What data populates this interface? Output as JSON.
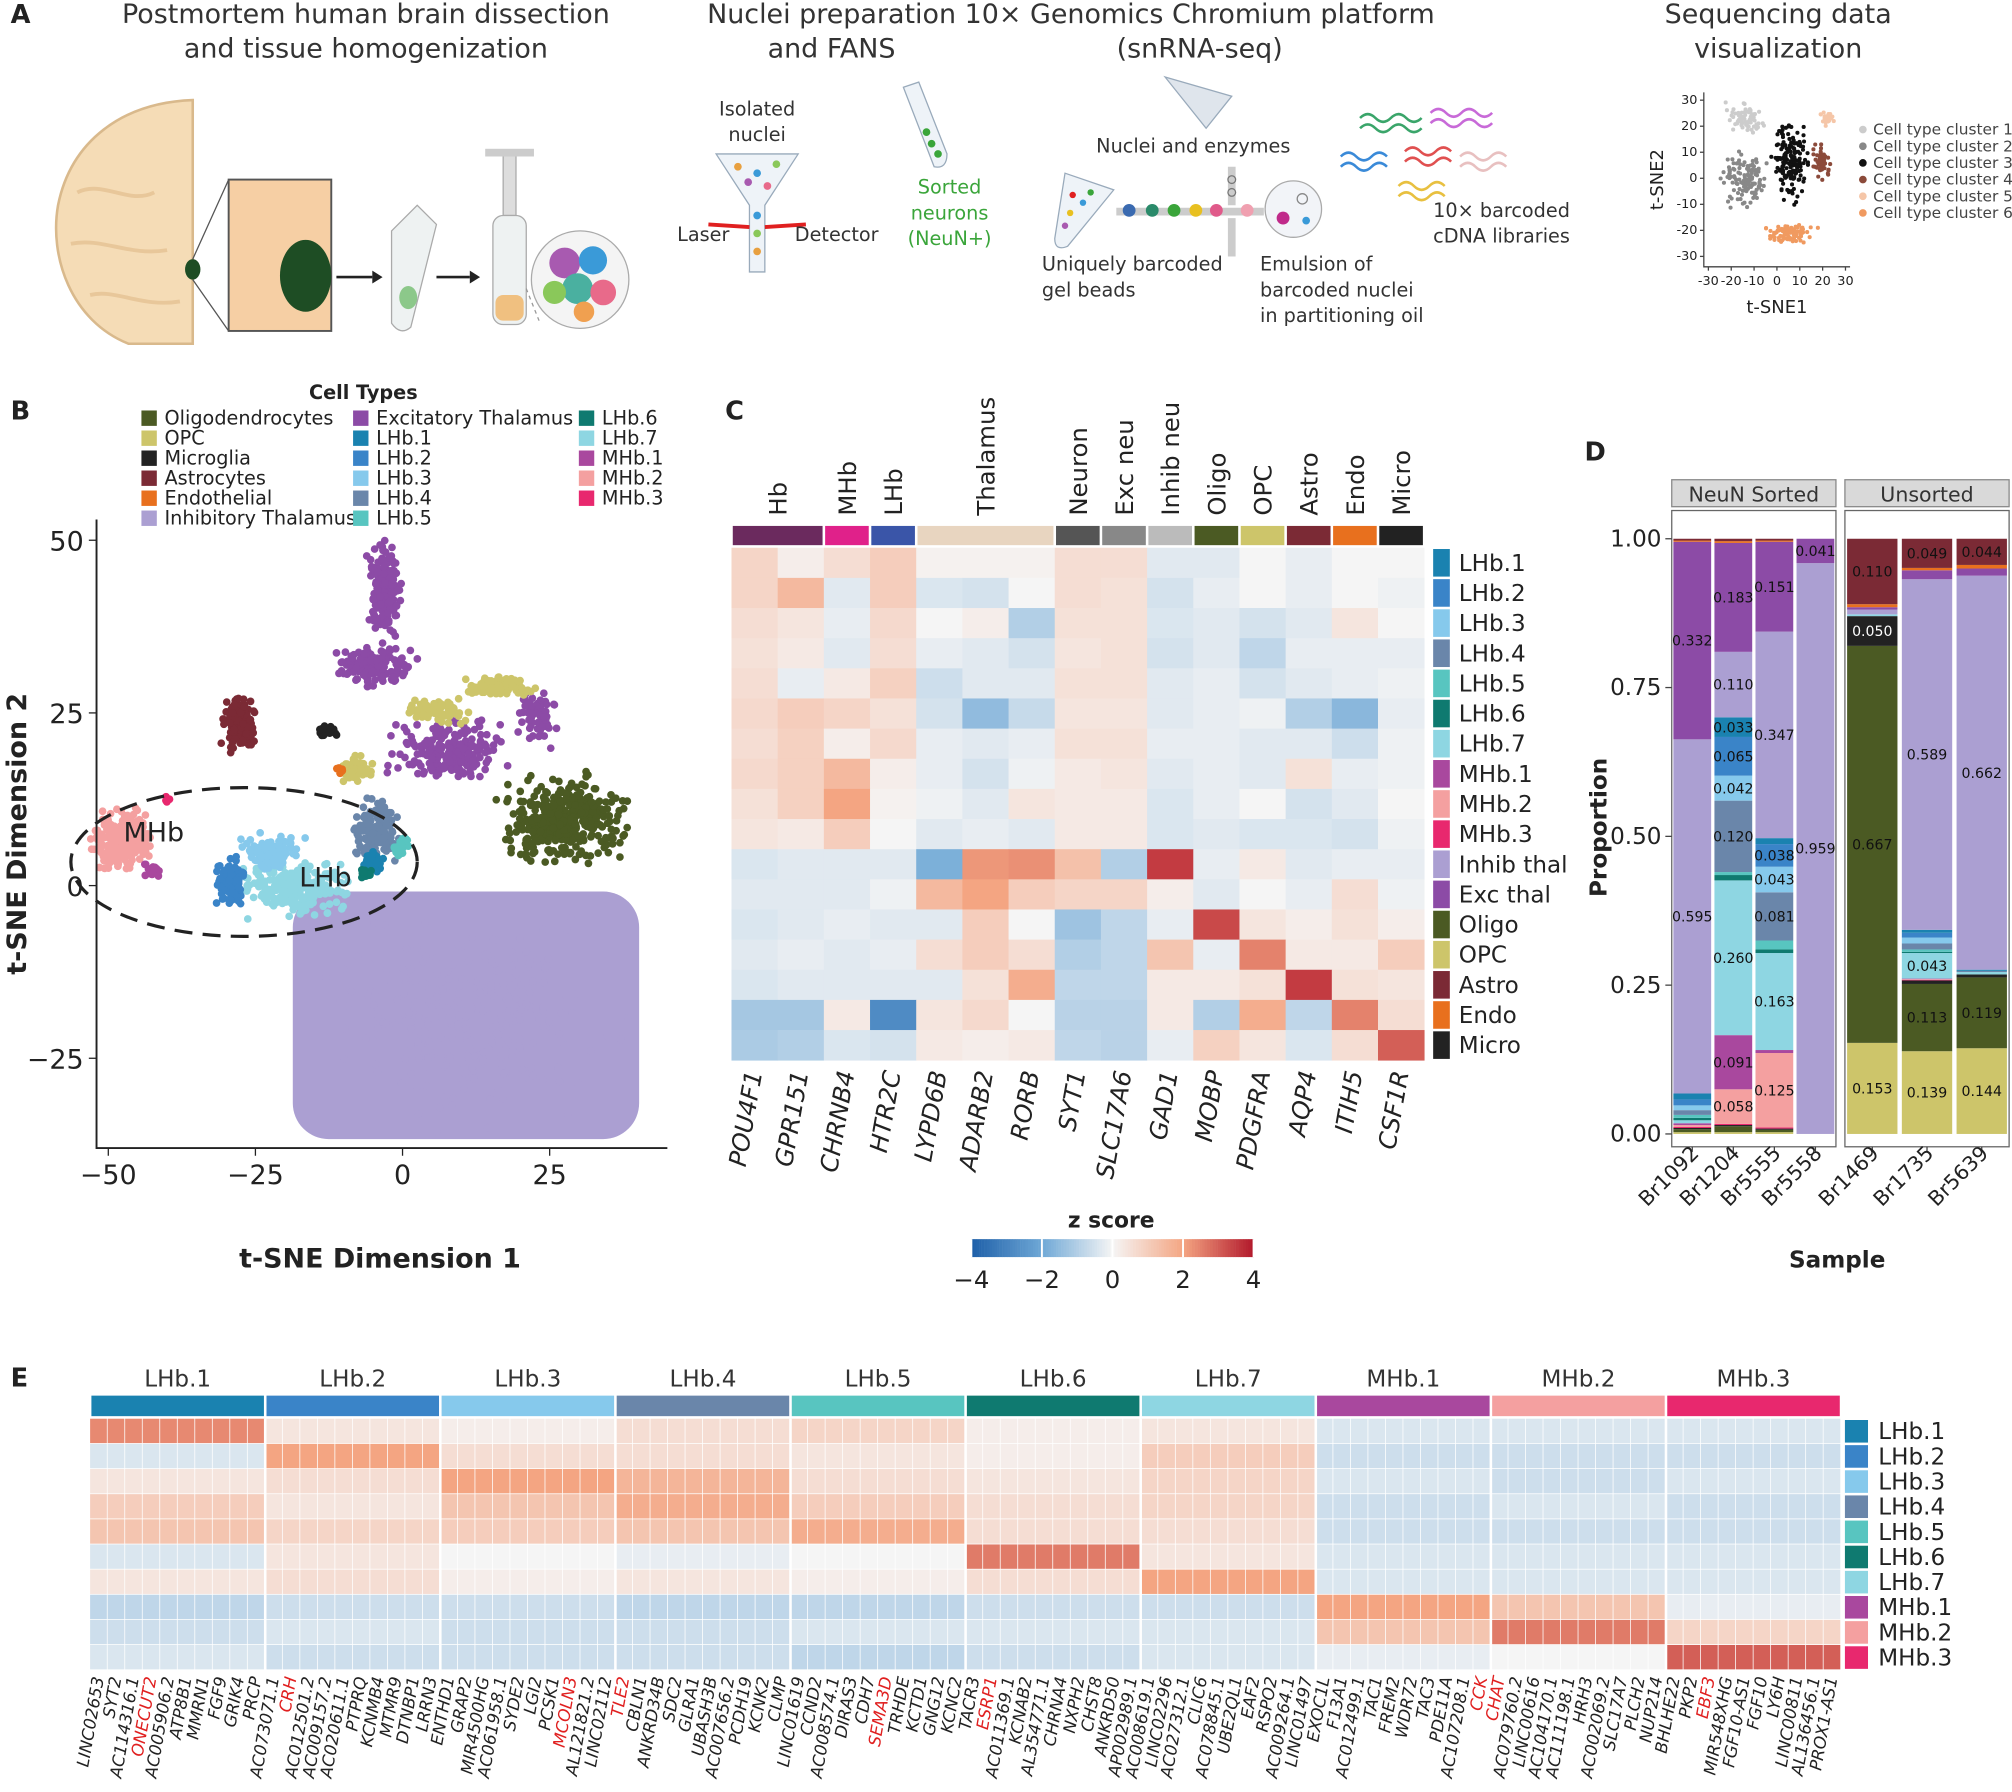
{
  "panel_a": {
    "label": "A",
    "headings": [
      [
        "Postmortem human brain dissection",
        "and tissue homogenization"
      ],
      [
        "Nuclei preparation",
        "and FANS"
      ],
      [
        "10× Genomics Chromium platform",
        "(snRNA-seq)"
      ],
      [
        "Sequencing data",
        "visualization"
      ]
    ],
    "isolated_nuclei": [
      "Isolated",
      "nuclei"
    ],
    "laser": "Laser",
    "detector": "Detector",
    "sorted_neurons": [
      "Sorted",
      "neurons",
      "(NeuN+)"
    ],
    "sorted_color": "#3aa53a",
    "nuclei_enzymes": "Nuclei and enzymes",
    "gel_beads": [
      "Uniquely barcoded",
      "gel beads"
    ],
    "emulsion": [
      "Emulsion of",
      "barcoded nuclei",
      "in partitioning oil"
    ],
    "libraries": [
      "10× barcoded",
      "cDNA libraries"
    ],
    "mini_tsne": {
      "xlabel": "t-SNE1",
      "ylabel": "t-SNE2",
      "xlim": [
        -32,
        32
      ],
      "ylim": [
        -34,
        33
      ],
      "xticks": [
        -30,
        -20,
        -10,
        0,
        10,
        20,
        30
      ],
      "yticks": [
        30,
        20,
        10,
        0,
        -10,
        -20,
        -30
      ],
      "legend": [
        {
          "name": "Cell type cluster 1",
          "color": "#cccccc"
        },
        {
          "name": "Cell type cluster 2",
          "color": "#888888"
        },
        {
          "name": "Cell type cluster 3",
          "color": "#111111"
        },
        {
          "name": "Cell type cluster 4",
          "color": "#8b4a3a"
        },
        {
          "name": "Cell type cluster 5",
          "color": "#f5c6a8"
        },
        {
          "name": "Cell type cluster 6",
          "color": "#f09a60"
        }
      ]
    }
  },
  "panel_b": {
    "label": "B",
    "legend_title": "Cell Types",
    "legend": [
      {
        "name": "Oligodendrocytes",
        "color": "#4b5a23"
      },
      {
        "name": "OPC",
        "color": "#cdc56a"
      },
      {
        "name": "Microglia",
        "color": "#222222"
      },
      {
        "name": "Astrocytes",
        "color": "#7b2a35"
      },
      {
        "name": "Endothelial",
        "color": "#e8701e"
      },
      {
        "name": "Inhibitory Thalamus",
        "color": "#ab9fd2"
      },
      {
        "name": "Excitatory Thalamus",
        "color": "#8c4ba6"
      },
      {
        "name": "LHb.1",
        "color": "#1a82b0"
      },
      {
        "name": "LHb.2",
        "color": "#3a84c8"
      },
      {
        "name": "LHb.3",
        "color": "#86c9ec"
      },
      {
        "name": "LHb.4",
        "color": "#6a86aa"
      },
      {
        "name": "LHb.5",
        "color": "#58c5c0"
      },
      {
        "name": "LHb.6",
        "color": "#0f7a70"
      },
      {
        "name": "LHb.7",
        "color": "#8ed6e2"
      },
      {
        "name": "MHb.1",
        "color": "#a9489e"
      },
      {
        "name": "MHb.2",
        "color": "#f4a0a0"
      },
      {
        "name": "MHb.3",
        "color": "#e8286e"
      }
    ],
    "xlabel": "t-SNE Dimension 1",
    "ylabel": "t-SNE Dimension 2",
    "xlim": [
      -52,
      45
    ],
    "ylim": [
      -38,
      53
    ],
    "xticks": [
      {
        "value": -50,
        "label": "−50"
      },
      {
        "value": -25,
        "label": "−25"
      },
      0,
      25
    ],
    "yticks": [
      50,
      25,
      0,
      {
        "value": -25,
        "label": "−25"
      }
    ],
    "annotations": [
      "MHb",
      "LHb"
    ]
  },
  "panel_c": {
    "label": "C",
    "groups": [
      {
        "name": "Hb",
        "color": "#6b2a5e",
        "span": 2
      },
      {
        "name": "MHb",
        "color": "#e0218a",
        "span": 1
      },
      {
        "name": "LHb",
        "color": "#3a55a8",
        "span": 1
      },
      {
        "name": "Thalamus",
        "color": "#e8d5c0",
        "span": 3
      },
      {
        "name": "Neuron",
        "color": "#555555",
        "span": 1
      },
      {
        "name": "Exc neu",
        "color": "#888888",
        "span": 1
      },
      {
        "name": "Inhib neu",
        "color": "#bbbbbb",
        "span": 1
      },
      {
        "name": "Oligo",
        "color": "#4b5a23",
        "span": 1
      },
      {
        "name": "OPC",
        "color": "#cdc56a",
        "span": 1
      },
      {
        "name": "Astro",
        "color": "#7b2a35",
        "span": 1
      },
      {
        "name": "Endo",
        "color": "#e8701e",
        "span": 1
      },
      {
        "name": "Micro",
        "color": "#222222",
        "span": 1
      }
    ],
    "genes": [
      "POU4F1",
      "GPR151",
      "CHRNB4",
      "HTR2C",
      "LYPD6B",
      "ADARB2",
      "RORB",
      "SYT1",
      "SLC17A6",
      "GAD1",
      "MOBP",
      "PDGFRA",
      "AQP4",
      "ITIH5",
      "CSF1R"
    ],
    "rows": [
      {
        "name": "LHb.1",
        "color": "#1a82b0"
      },
      {
        "name": "LHb.2",
        "color": "#3a84c8"
      },
      {
        "name": "LHb.3",
        "color": "#86c9ec"
      },
      {
        "name": "LHb.4",
        "color": "#6a86aa"
      },
      {
        "name": "LHb.5",
        "color": "#58c5c0"
      },
      {
        "name": "LHb.6",
        "color": "#0f7a70"
      },
      {
        "name": "LHb.7",
        "color": "#8ed6e2"
      },
      {
        "name": "MHb.1",
        "color": "#a9489e"
      },
      {
        "name": "MHb.2",
        "color": "#f4a0a0"
      },
      {
        "name": "MHb.3",
        "color": "#e8286e"
      },
      {
        "name": "Inhib thal",
        "color": "#ab9fd2"
      },
      {
        "name": "Exc thal",
        "color": "#8c4ba6"
      },
      {
        "name": "Oligo",
        "color": "#4b5a23"
      },
      {
        "name": "OPC",
        "color": "#cdc56a"
      },
      {
        "name": "Astro",
        "color": "#7b2a35"
      },
      {
        "name": "Endo",
        "color": "#e8701e"
      },
      {
        "name": "Micro",
        "color": "#222222"
      }
    ],
    "z": [
      [
        0.8,
        0.2,
        0.6,
        1,
        0.1,
        0.1,
        0.1,
        0.6,
        0.6,
        -0.3,
        -0.3,
        0,
        -0.2,
        0,
        0
      ],
      [
        0.8,
        1.5,
        -0.3,
        1,
        -0.4,
        -0.5,
        0,
        0.6,
        0.5,
        -0.5,
        -0.2,
        0,
        -0.2,
        0,
        -0.1
      ],
      [
        0.6,
        0.4,
        -0.2,
        0.7,
        0,
        0.2,
        -1,
        0.5,
        0.5,
        -0.4,
        -0.3,
        -0.5,
        -0.3,
        0.4,
        0
      ],
      [
        0.5,
        0.3,
        -0.3,
        0.6,
        -0.2,
        -0.3,
        -0.5,
        0.4,
        0.5,
        -0.5,
        -0.3,
        -0.8,
        -0.2,
        -0.2,
        -0.2
      ],
      [
        0.6,
        -0.2,
        0.3,
        0.9,
        -0.6,
        -0.3,
        -0.3,
        0.5,
        0.5,
        -0.3,
        -0.2,
        -0.5,
        -0.3,
        -0.2,
        -0.1
      ],
      [
        0.7,
        1,
        0.8,
        0.5,
        -0.5,
        -1.5,
        -0.7,
        0.4,
        0.4,
        -0.3,
        -0.2,
        -0.1,
        -1,
        -1.6,
        -0.2
      ],
      [
        0.6,
        0.9,
        0.2,
        0.7,
        -0.2,
        -0.3,
        -0.2,
        0.5,
        0.5,
        -0.2,
        -0.2,
        -0.3,
        -0.3,
        -0.6,
        -0.1
      ],
      [
        0.7,
        0.9,
        1.5,
        0.2,
        -0.2,
        -0.5,
        -0.1,
        0.3,
        0.4,
        -0.3,
        -0.2,
        -0.3,
        0.5,
        -0.2,
        -0.1
      ],
      [
        0.5,
        0.9,
        2,
        0.1,
        -0.1,
        -0.3,
        0.4,
        0.3,
        0.3,
        -0.4,
        -0.2,
        0,
        -0.5,
        -0.3,
        0
      ],
      [
        0.4,
        0.3,
        1,
        0,
        -0.3,
        -0.2,
        -0.3,
        0.3,
        0.3,
        -0.4,
        -0.3,
        -0.4,
        -0.4,
        -0.5,
        -0.1
      ],
      [
        -0.4,
        -0.3,
        -0.3,
        -0.3,
        -1.8,
        2.2,
        2.3,
        1.3,
        -1,
        3.5,
        -0.2,
        0.3,
        -0.3,
        -0.2,
        -0.2
      ],
      [
        -0.3,
        -0.3,
        -0.3,
        -0.1,
        1.5,
        2,
        1,
        0.8,
        0.8,
        0.2,
        -0.3,
        0,
        -0.2,
        0.6,
        -0.1
      ],
      [
        -0.4,
        -0.3,
        -0.2,
        -0.3,
        -0.3,
        1,
        0,
        -1.3,
        -0.8,
        -0.2,
        3.3,
        0.4,
        0.2,
        0.5,
        0.2
      ],
      [
        -0.3,
        -0.2,
        -0.3,
        -0.2,
        0.6,
        1,
        0.6,
        -1,
        -0.8,
        1.2,
        -0.2,
        2.5,
        0.3,
        0.3,
        1
      ],
      [
        -0.4,
        -0.3,
        -0.3,
        -0.3,
        -0.3,
        0.5,
        1.8,
        -0.8,
        -0.8,
        0.3,
        0.3,
        0.5,
        3.5,
        0.5,
        0.4
      ],
      [
        -1.2,
        -1.2,
        0.3,
        -2.8,
        0.4,
        0.7,
        0,
        -0.9,
        -0.9,
        0.3,
        -1,
        1.8,
        -0.8,
        2.5,
        0.6
      ],
      [
        -1.1,
        -1,
        -0.4,
        -0.5,
        0.3,
        0.2,
        0.3,
        -0.8,
        -0.9,
        -0.2,
        0.9,
        0.4,
        -0.4,
        0.6,
        3
      ]
    ],
    "colormap": [
      "#1e5fa8",
      "#6fa8d6",
      "#f5f5f5",
      "#f4a582",
      "#b2182b"
    ],
    "colorbar": {
      "title": "z score",
      "lim": [
        -4,
        4
      ],
      "ticks": [
        {
          "value": -4,
          "label": "−4"
        },
        {
          "value": -2,
          "label": "−2"
        },
        0,
        2,
        4
      ]
    }
  },
  "panel_d": {
    "label": "D",
    "facets": [
      {
        "name": "NeuN Sorted",
        "span": 4
      },
      {
        "name": "Unsorted",
        "span": 3
      }
    ],
    "samples": [
      "Br1092",
      "Br1204",
      "Br5555",
      "Br5558",
      "Br1469",
      "Br1735",
      "Br5639"
    ],
    "ylabel": "Proportion",
    "xlabel": "Sample",
    "ylim": [
      0,
      1
    ],
    "yticks": [
      {
        "value": 0,
        "label": "0.00"
      },
      {
        "value": 0.25,
        "label": "0.25"
      },
      {
        "value": 0.5,
        "label": "0.50"
      },
      {
        "value": 0.75,
        "label": "0.75"
      },
      {
        "value": 1,
        "label": "1.00"
      }
    ],
    "values": [
      [
        0.005,
        0.003,
        0.002,
        0.003,
        0.002,
        0.595,
        0.332,
        0.01,
        0.01,
        0.008,
        0.008,
        0.005,
        0.004,
        0.005,
        0.003,
        0.003,
        0.002
      ],
      [
        0.01,
        0.003,
        0.002,
        0.004,
        0.003,
        0.11,
        0.183,
        0.033,
        0.065,
        0.042,
        0.12,
        0.005,
        0.009,
        0.26,
        0.091,
        0.058,
        0.002
      ],
      [
        0.004,
        0.003,
        0.002,
        0.003,
        0.002,
        0.347,
        0.151,
        0.01,
        0.038,
        0.043,
        0.081,
        0.015,
        0.006,
        0.163,
        0.005,
        0.125,
        0.002
      ],
      [
        0,
        0,
        0,
        0,
        0,
        0.959,
        0.041,
        0,
        0,
        0,
        0,
        0,
        0,
        0,
        0,
        0,
        0
      ],
      [
        0.667,
        0.153,
        0.05,
        0.11,
        0.005,
        0.008,
        0.004,
        0,
        0,
        0,
        0,
        0,
        0,
        0.003,
        0,
        0,
        0
      ],
      [
        0.113,
        0.139,
        0.006,
        0.049,
        0.004,
        0.589,
        0.015,
        0.005,
        0.008,
        0.01,
        0.01,
        0.004,
        0.002,
        0.043,
        0.001,
        0.001,
        0.001
      ],
      [
        0.119,
        0.144,
        0.005,
        0.044,
        0.006,
        0.662,
        0.012,
        0.002,
        0,
        0,
        0.002,
        0,
        0,
        0.004,
        0,
        0,
        0
      ]
    ],
    "value_labels": [
      [
        null,
        null,
        null,
        null,
        null,
        "0.595",
        "0.332",
        null,
        null,
        null,
        null,
        null,
        null,
        null,
        null,
        null,
        null
      ],
      [
        null,
        null,
        null,
        null,
        null,
        "0.110",
        "0.183",
        "0.033",
        "0.065",
        "0.042",
        "0.120",
        null,
        null,
        "0.260",
        "0.091",
        "0.058",
        null
      ],
      [
        null,
        null,
        null,
        null,
        null,
        "0.347",
        "0.151",
        null,
        "0.038",
        "0.043",
        "0.081",
        null,
        null,
        "0.163",
        null,
        "0.125",
        null
      ],
      [
        null,
        null,
        null,
        null,
        null,
        "0.959",
        "0.041",
        null,
        null,
        null,
        null,
        null,
        null,
        null,
        null,
        null,
        null
      ],
      [
        "0.667",
        "0.153",
        "0.050",
        "0.110",
        null,
        null,
        null,
        null,
        null,
        null,
        null,
        null,
        null,
        null,
        null,
        null,
        null
      ],
      [
        "0.113",
        "0.139",
        null,
        "0.049",
        null,
        "0.589",
        null,
        null,
        null,
        null,
        null,
        null,
        null,
        "0.043",
        null,
        null,
        null
      ],
      [
        "0.119",
        "0.144",
        null,
        "0.044",
        null,
        "0.662",
        null,
        null,
        null,
        null,
        null,
        null,
        null,
        null,
        null,
        null,
        null
      ]
    ]
  },
  "panel_e": {
    "label": "E",
    "lim": [
      -2,
      2
    ],
    "highlight_color": "#e02020",
    "clusters": [
      {
        "name": "LHb.1",
        "color": "#1a82b0",
        "highlight": 3,
        "genes": [
          "LINC02653",
          "SYT2",
          "AC114316.1",
          "ONECUT2",
          "AC005906.2",
          "ATP8B1",
          "MMRN1",
          "FGF9",
          "GRIK4",
          "PRCP"
        ]
      },
      {
        "name": "LHb.2",
        "color": "#3a84c8",
        "highlight": 1,
        "genes": [
          "AC073071.1",
          "CRH",
          "AC012501.2",
          "AC009157.2",
          "AC020611.1",
          "PTPRQ",
          "KCNMB4",
          "MTMR9",
          "DTNBP1",
          "LRRN3"
        ]
      },
      {
        "name": "LHb.3",
        "color": "#86c9ec",
        "highlight": 7,
        "genes": [
          "ENTHD1",
          "GRAP2",
          "MIR4500HG",
          "AC061958.1",
          "SYDE2",
          "LGI2",
          "PCSK1",
          "MCOLN3",
          "AL121821.2",
          "LINC02112"
        ]
      },
      {
        "name": "LHb.4",
        "color": "#6a86aa",
        "highlight": 0,
        "genes": [
          "TLE2",
          "CBLN1",
          "ANKRD34B",
          "SDC2",
          "GLRA1",
          "UBASH3B",
          "AC007656.2",
          "PCDH19",
          "KCNK2",
          "CLMP"
        ]
      },
      {
        "name": "LHb.5",
        "color": "#58c5c0",
        "highlight": 5,
        "genes": [
          "LINC01619",
          "CCND2",
          "AC008574.1",
          "DIRAS3",
          "CDH7",
          "SEMA3D",
          "TRHDE",
          "KCTD1",
          "GNG12",
          "KCNC2"
        ]
      },
      {
        "name": "LHb.6",
        "color": "#0f7a70",
        "highlight": 1,
        "genes": [
          "TACR3",
          "ESRP1",
          "AC011369.1",
          "KCNAB2",
          "AL354771.1",
          "CHRNA4",
          "NXPH2",
          "CHST8",
          "ANKRD50",
          "AP002989.1"
        ]
      },
      {
        "name": "LHb.7",
        "color": "#8ed6e2",
        "highlight": null,
        "genes": [
          "AC008619.1",
          "LINC02296",
          "AC027312.1",
          "CLIC6",
          "AC078845.1",
          "UBE2QL1",
          "EAF2",
          "RSPO2",
          "AC009264.1",
          "LINC01497"
        ]
      },
      {
        "name": "MHb.1",
        "color": "#a9489e",
        "highlight": 9,
        "genes": [
          "EXOC1L",
          "F13A1",
          "AC012499.1",
          "TAC1",
          "FREM2",
          "WDR72",
          "TAC3",
          "PDE11A",
          "AC107208.1",
          "CCK"
        ]
      },
      {
        "name": "MHb.2",
        "color": "#f4a0a0",
        "highlight": 0,
        "genes": [
          "CHAT",
          "AC079760.2",
          "LINC00616",
          "AC104170.1",
          "AC111198.1",
          "HRH3",
          "AC002069.2",
          "SLC17A7",
          "PLCH2",
          "NUP214"
        ]
      },
      {
        "name": "MHb.3",
        "color": "#e8286e",
        "highlight": 2,
        "genes": [
          "BHLHE22",
          "PKP2",
          "EBF3",
          "MIR548XHG",
          "FGF10-AS1",
          "FGF10",
          "LY6H",
          "LINC00811",
          "AL136456.1",
          "PROX1-AS1"
        ]
      }
    ],
    "z": [
      [
        1.2,
        0.2,
        0.1,
        0.3,
        0.4,
        0.1,
        0.2,
        -0.2,
        -0.2,
        -0.2
      ],
      [
        -0.2,
        1,
        0.3,
        0.3,
        0.2,
        0.1,
        0.5,
        -0.3,
        -0.3,
        -0.3
      ],
      [
        0.2,
        0.3,
        1,
        0.8,
        0.3,
        0.2,
        0.4,
        -0.2,
        -0.3,
        -0.2
      ],
      [
        0.5,
        0.2,
        0.6,
        0.9,
        0.5,
        0.3,
        0.4,
        -0.3,
        -0.2,
        -0.3
      ],
      [
        0.6,
        0.4,
        0.5,
        0.6,
        0.9,
        0.3,
        0.3,
        -0.3,
        -0.3,
        -0.3
      ],
      [
        -0.2,
        0.2,
        0,
        -0.1,
        0,
        1.3,
        0.2,
        -0.2,
        -0.2,
        -0.2
      ],
      [
        0.2,
        0.3,
        0.1,
        0.2,
        0.1,
        0.3,
        1,
        -0.2,
        -0.2,
        -0.2
      ],
      [
        -0.4,
        -0.3,
        -0.3,
        -0.4,
        -0.4,
        -0.3,
        -0.3,
        1,
        0.6,
        -0.1
      ],
      [
        -0.3,
        -0.2,
        -0.3,
        -0.3,
        -0.2,
        -0.2,
        -0.2,
        0.6,
        1.3,
        0.4
      ],
      [
        -0.2,
        -0.3,
        -0.3,
        -0.3,
        -0.4,
        -0.3,
        -0.2,
        -0.1,
        0,
        1.5
      ]
    ]
  }
}
